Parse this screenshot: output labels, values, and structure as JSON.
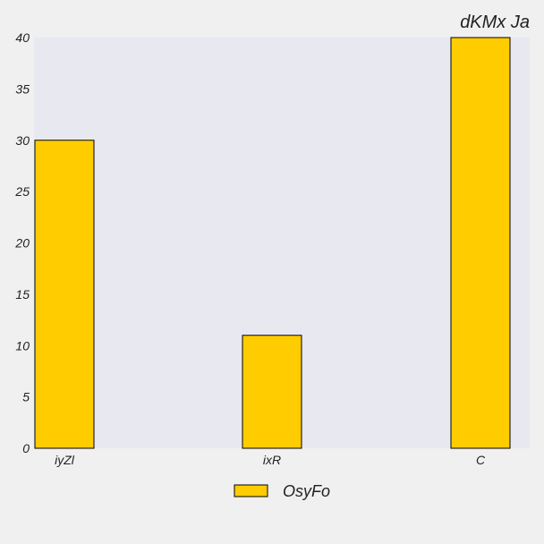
{
  "chart_data": {
    "type": "bar",
    "title": "dKMx Ja",
    "xlabel": "",
    "ylabel": "",
    "categories": [
      "iyZl",
      "ixR",
      "C"
    ],
    "series": [
      {
        "name": "OsyFo",
        "values": [
          30,
          11,
          40
        ],
        "color": "#ffcc00"
      }
    ],
    "ylim": [
      0,
      40
    ],
    "yticks": [
      0,
      5,
      10,
      15,
      20,
      25,
      30,
      35,
      40
    ],
    "grid": false,
    "legend_position": "bottom-center",
    "plot_background": "#e8e8f0",
    "bar_edge_color": "#000000"
  }
}
